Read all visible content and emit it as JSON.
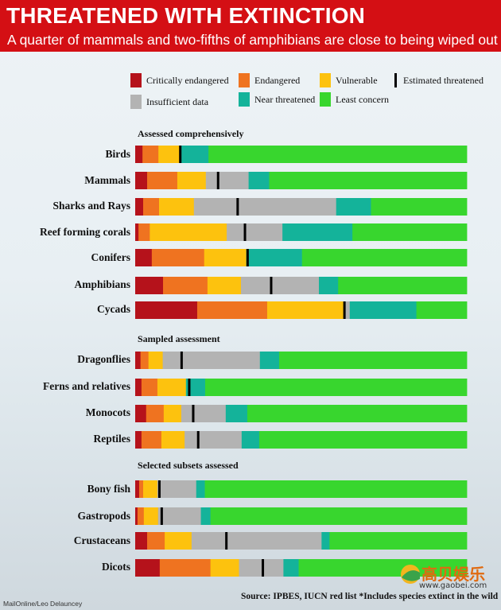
{
  "header": {
    "title": "THREATENED WITH EXTINCTION",
    "subtitle": "A quarter of mammals and two-fifths of amphibians are close to being wiped out"
  },
  "colors": {
    "critically_endangered": "#b5121b",
    "endangered": "#ef7320",
    "vulnerable": "#fdc20e",
    "insufficient_data": "#b3b3b3",
    "near_threatened": "#14b39a",
    "least_concern": "#38d62e",
    "estimated_threatened": "#000000",
    "header_red": "#d40f14"
  },
  "legend": [
    {
      "key": "critically_endangered",
      "label": "Critically endangered"
    },
    {
      "key": "endangered",
      "label": "Endangered"
    },
    {
      "key": "vulnerable",
      "label": "Vulnerable"
    },
    {
      "key": "estimated_threatened",
      "label": "Estimated threatened"
    },
    {
      "key": "insufficient_data",
      "label": "Insufficient data"
    },
    {
      "key": "near_threatened",
      "label": "Near threatened"
    },
    {
      "key": "least_concern",
      "label": "Least concern"
    }
  ],
  "sections": [
    "Assessed comprehensively",
    "Sampled assessment",
    "Selected subsets assessed"
  ],
  "chart_data": {
    "type": "bar",
    "orientation": "horizontal",
    "stacked": true,
    "unit": "percent of species",
    "categories": [
      "Birds",
      "Mammals",
      "Sharks and Rays",
      "Reef forming corals",
      "Conifers",
      "Amphibians",
      "Cycads",
      "Dragonflies",
      "Ferns and relatives",
      "Monocots",
      "Reptiles",
      "Bony fish",
      "Gastropods",
      "Crustaceans",
      "Dicots"
    ],
    "series": [
      {
        "name": "Critically endangered",
        "key": "critically_endangered",
        "values": [
          2.2,
          3.6,
          2.4,
          1.0,
          5.0,
          8.4,
          18.7,
          1.6,
          1.9,
          3.3,
          1.9,
          1.2,
          0.7,
          3.6,
          7.4
        ]
      },
      {
        "name": "Endangered",
        "key": "endangered",
        "values": [
          4.8,
          9.1,
          4.8,
          3.4,
          15.8,
          13.4,
          21.1,
          2.4,
          4.8,
          5.3,
          6.0,
          1.2,
          1.9,
          5.3,
          15.3
        ]
      },
      {
        "name": "Vulnerable",
        "key": "vulnerable",
        "values": [
          6.5,
          8.6,
          10.5,
          23.2,
          12.7,
          10.1,
          23.5,
          4.3,
          8.6,
          5.3,
          7.0,
          4.3,
          4.3,
          8.1,
          8.6
        ]
      },
      {
        "name": "Insufficient data",
        "key": "insufficient_data",
        "values": [
          0.0,
          12.9,
          42.9,
          16.8,
          0.0,
          23.5,
          1.4,
          29.3,
          0.0,
          13.4,
          17.2,
          11.7,
          12.9,
          39.2,
          13.4
        ]
      },
      {
        "name": "Near threatened",
        "key": "near_threatened",
        "values": [
          8.6,
          6.2,
          10.5,
          21.1,
          16.8,
          5.8,
          20.1,
          5.8,
          5.8,
          6.5,
          5.3,
          2.6,
          2.9,
          2.4,
          4.6
        ]
      },
      {
        "name": "Least concern",
        "key": "least_concern",
        "values": [
          77.9,
          59.6,
          28.9,
          34.5,
          49.7,
          38.8,
          15.2,
          56.6,
          78.9,
          66.2,
          62.6,
          79.0,
          77.3,
          41.4,
          50.7
        ]
      }
    ],
    "estimated_threatened": [
      13.6,
      25.0,
      30.9,
      33.1,
      33.9,
      41.0,
      63.1,
      14.0,
      16.3,
      17.5,
      19.0,
      7.3,
      8.0,
      27.5,
      38.5
    ],
    "groups": [
      {
        "section": "Assessed comprehensively",
        "categories": [
          "Birds",
          "Mammals",
          "Sharks and Rays",
          "Reef forming corals",
          "Conifers",
          "Amphibians",
          "Cycads"
        ]
      },
      {
        "section": "Sampled assessment",
        "categories": [
          "Dragonflies",
          "Ferns and relatives",
          "Monocots",
          "Reptiles"
        ]
      },
      {
        "section": "Selected subsets assessed",
        "categories": [
          "Bony fish",
          "Gastropods",
          "Crustaceans",
          "Dicots"
        ]
      }
    ],
    "xlim": [
      0,
      100
    ]
  },
  "footer": {
    "credit": "MailOnline/Leo Delauncey",
    "source": "Source: IPBES, IUCN red list   *Includes species extinct in the wild"
  },
  "watermark": {
    "name": "高贝娱乐",
    "url": "www.gaobei.com"
  }
}
